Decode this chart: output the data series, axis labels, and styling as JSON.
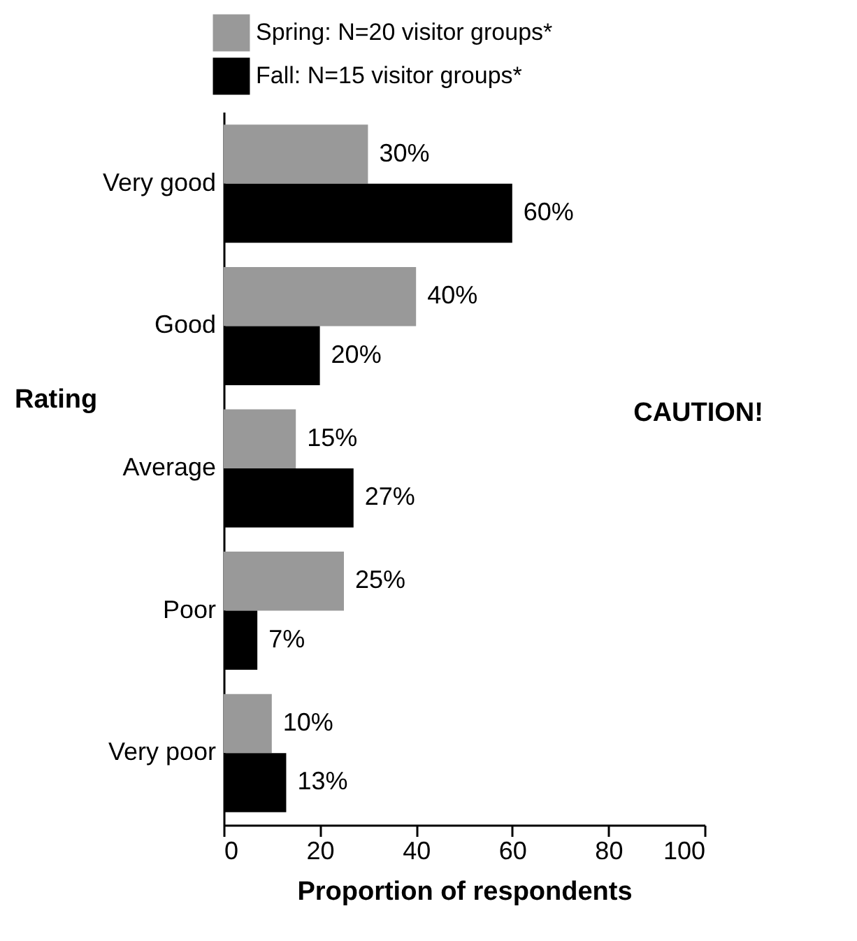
{
  "chart_data": {
    "type": "bar",
    "orientation": "horizontal",
    "categories": [
      "Very good",
      "Good",
      "Average",
      "Poor",
      "Very poor"
    ],
    "series": [
      {
        "name": "Spring: N=20 visitor groups*",
        "color": "#999999",
        "values": [
          30,
          40,
          15,
          25,
          10
        ],
        "value_labels": [
          "30%",
          "40%",
          "15%",
          "25%",
          "10%"
        ]
      },
      {
        "name": "Fall: N=15 visitor groups*",
        "color": "#000000",
        "values": [
          60,
          20,
          27,
          7,
          13
        ],
        "value_labels": [
          "60%",
          "20%",
          "27%",
          "7%",
          "13%"
        ]
      }
    ],
    "xlim": [
      0,
      100
    ],
    "xticks": [
      0,
      20,
      40,
      60,
      80,
      100
    ],
    "xlabel": "Proportion of respondents",
    "ylabel": "Rating",
    "annotations": [
      "CAUTION!"
    ],
    "legend": "top",
    "grid": false
  }
}
